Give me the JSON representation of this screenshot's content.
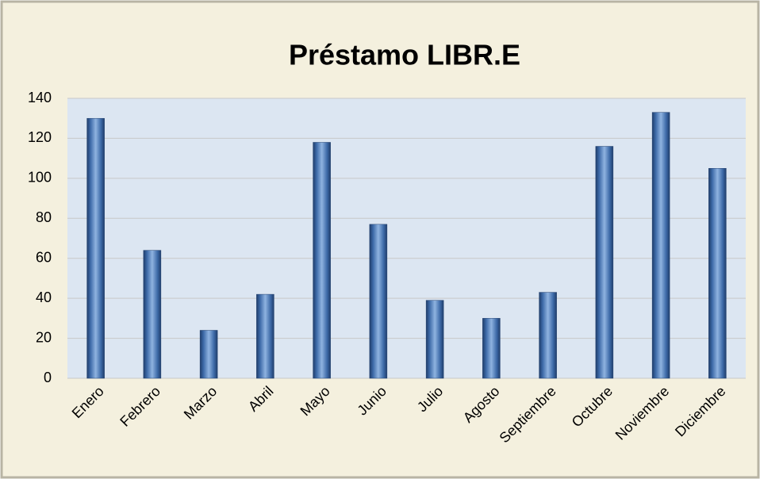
{
  "chart_data": {
    "type": "bar",
    "title": "Préstamo LIBR.E",
    "categories": [
      "Enero",
      "Febrero",
      "Marzo",
      "Abril",
      "Mayo",
      "Junio",
      "Julio",
      "Agosto",
      "Septiembre",
      "Octubre",
      "Noviembre",
      "Diciembre"
    ],
    "values": [
      130,
      64,
      24,
      42,
      118,
      77,
      39,
      30,
      43,
      116,
      133,
      105
    ],
    "color": "#4f81bd",
    "ylim": [
      0,
      140
    ],
    "yticks": [
      0,
      20,
      40,
      60,
      80,
      100,
      120,
      140
    ],
    "grid": true
  }
}
